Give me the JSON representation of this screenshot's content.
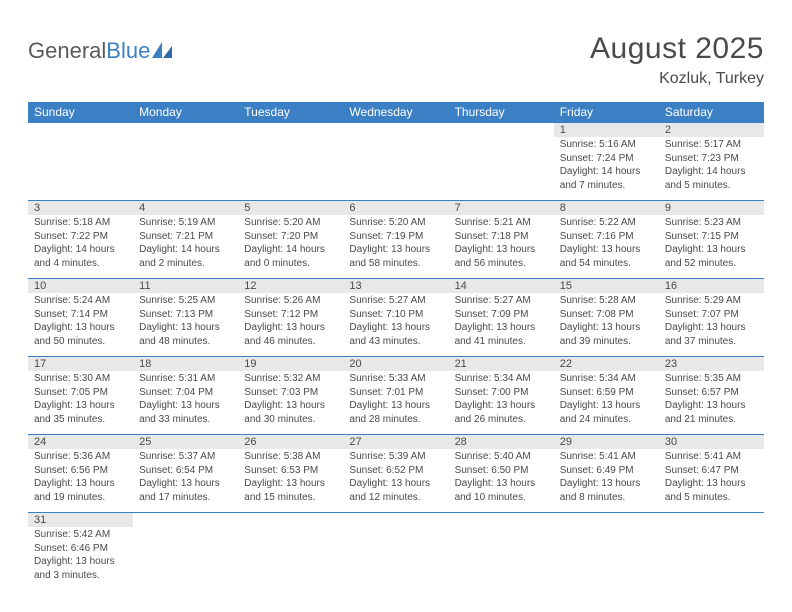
{
  "logo": {
    "text1": "General",
    "text2": "Blue"
  },
  "title": "August 2025",
  "location": "Kozluk, Turkey",
  "colors": {
    "header_bg": "#3b7fc4",
    "header_text": "#ffffff",
    "daynum_bg": "#e8e8e8",
    "text": "#4a4a4a",
    "row_border": "#3b7fc4"
  },
  "typography": {
    "title_fontsize": 30,
    "location_fontsize": 16,
    "dayheader_fontsize": 12,
    "daynum_fontsize": 11,
    "body_fontsize": 10,
    "font_family": "Arial"
  },
  "day_headers": [
    "Sunday",
    "Monday",
    "Tuesday",
    "Wednesday",
    "Thursday",
    "Friday",
    "Saturday"
  ],
  "weeks": [
    [
      null,
      null,
      null,
      null,
      null,
      {
        "n": "1",
        "sunrise": "Sunrise: 5:16 AM",
        "sunset": "Sunset: 7:24 PM",
        "daylight": "Daylight: 14 hours and 7 minutes."
      },
      {
        "n": "2",
        "sunrise": "Sunrise: 5:17 AM",
        "sunset": "Sunset: 7:23 PM",
        "daylight": "Daylight: 14 hours and 5 minutes."
      }
    ],
    [
      {
        "n": "3",
        "sunrise": "Sunrise: 5:18 AM",
        "sunset": "Sunset: 7:22 PM",
        "daylight": "Daylight: 14 hours and 4 minutes."
      },
      {
        "n": "4",
        "sunrise": "Sunrise: 5:19 AM",
        "sunset": "Sunset: 7:21 PM",
        "daylight": "Daylight: 14 hours and 2 minutes."
      },
      {
        "n": "5",
        "sunrise": "Sunrise: 5:20 AM",
        "sunset": "Sunset: 7:20 PM",
        "daylight": "Daylight: 14 hours and 0 minutes."
      },
      {
        "n": "6",
        "sunrise": "Sunrise: 5:20 AM",
        "sunset": "Sunset: 7:19 PM",
        "daylight": "Daylight: 13 hours and 58 minutes."
      },
      {
        "n": "7",
        "sunrise": "Sunrise: 5:21 AM",
        "sunset": "Sunset: 7:18 PM",
        "daylight": "Daylight: 13 hours and 56 minutes."
      },
      {
        "n": "8",
        "sunrise": "Sunrise: 5:22 AM",
        "sunset": "Sunset: 7:16 PM",
        "daylight": "Daylight: 13 hours and 54 minutes."
      },
      {
        "n": "9",
        "sunrise": "Sunrise: 5:23 AM",
        "sunset": "Sunset: 7:15 PM",
        "daylight": "Daylight: 13 hours and 52 minutes."
      }
    ],
    [
      {
        "n": "10",
        "sunrise": "Sunrise: 5:24 AM",
        "sunset": "Sunset: 7:14 PM",
        "daylight": "Daylight: 13 hours and 50 minutes."
      },
      {
        "n": "11",
        "sunrise": "Sunrise: 5:25 AM",
        "sunset": "Sunset: 7:13 PM",
        "daylight": "Daylight: 13 hours and 48 minutes."
      },
      {
        "n": "12",
        "sunrise": "Sunrise: 5:26 AM",
        "sunset": "Sunset: 7:12 PM",
        "daylight": "Daylight: 13 hours and 46 minutes."
      },
      {
        "n": "13",
        "sunrise": "Sunrise: 5:27 AM",
        "sunset": "Sunset: 7:10 PM",
        "daylight": "Daylight: 13 hours and 43 minutes."
      },
      {
        "n": "14",
        "sunrise": "Sunrise: 5:27 AM",
        "sunset": "Sunset: 7:09 PM",
        "daylight": "Daylight: 13 hours and 41 minutes."
      },
      {
        "n": "15",
        "sunrise": "Sunrise: 5:28 AM",
        "sunset": "Sunset: 7:08 PM",
        "daylight": "Daylight: 13 hours and 39 minutes."
      },
      {
        "n": "16",
        "sunrise": "Sunrise: 5:29 AM",
        "sunset": "Sunset: 7:07 PM",
        "daylight": "Daylight: 13 hours and 37 minutes."
      }
    ],
    [
      {
        "n": "17",
        "sunrise": "Sunrise: 5:30 AM",
        "sunset": "Sunset: 7:05 PM",
        "daylight": "Daylight: 13 hours and 35 minutes."
      },
      {
        "n": "18",
        "sunrise": "Sunrise: 5:31 AM",
        "sunset": "Sunset: 7:04 PM",
        "daylight": "Daylight: 13 hours and 33 minutes."
      },
      {
        "n": "19",
        "sunrise": "Sunrise: 5:32 AM",
        "sunset": "Sunset: 7:03 PM",
        "daylight": "Daylight: 13 hours and 30 minutes."
      },
      {
        "n": "20",
        "sunrise": "Sunrise: 5:33 AM",
        "sunset": "Sunset: 7:01 PM",
        "daylight": "Daylight: 13 hours and 28 minutes."
      },
      {
        "n": "21",
        "sunrise": "Sunrise: 5:34 AM",
        "sunset": "Sunset: 7:00 PM",
        "daylight": "Daylight: 13 hours and 26 minutes."
      },
      {
        "n": "22",
        "sunrise": "Sunrise: 5:34 AM",
        "sunset": "Sunset: 6:59 PM",
        "daylight": "Daylight: 13 hours and 24 minutes."
      },
      {
        "n": "23",
        "sunrise": "Sunrise: 5:35 AM",
        "sunset": "Sunset: 6:57 PM",
        "daylight": "Daylight: 13 hours and 21 minutes."
      }
    ],
    [
      {
        "n": "24",
        "sunrise": "Sunrise: 5:36 AM",
        "sunset": "Sunset: 6:56 PM",
        "daylight": "Daylight: 13 hours and 19 minutes."
      },
      {
        "n": "25",
        "sunrise": "Sunrise: 5:37 AM",
        "sunset": "Sunset: 6:54 PM",
        "daylight": "Daylight: 13 hours and 17 minutes."
      },
      {
        "n": "26",
        "sunrise": "Sunrise: 5:38 AM",
        "sunset": "Sunset: 6:53 PM",
        "daylight": "Daylight: 13 hours and 15 minutes."
      },
      {
        "n": "27",
        "sunrise": "Sunrise: 5:39 AM",
        "sunset": "Sunset: 6:52 PM",
        "daylight": "Daylight: 13 hours and 12 minutes."
      },
      {
        "n": "28",
        "sunrise": "Sunrise: 5:40 AM",
        "sunset": "Sunset: 6:50 PM",
        "daylight": "Daylight: 13 hours and 10 minutes."
      },
      {
        "n": "29",
        "sunrise": "Sunrise: 5:41 AM",
        "sunset": "Sunset: 6:49 PM",
        "daylight": "Daylight: 13 hours and 8 minutes."
      },
      {
        "n": "30",
        "sunrise": "Sunrise: 5:41 AM",
        "sunset": "Sunset: 6:47 PM",
        "daylight": "Daylight: 13 hours and 5 minutes."
      }
    ],
    [
      {
        "n": "31",
        "sunrise": "Sunrise: 5:42 AM",
        "sunset": "Sunset: 6:46 PM",
        "daylight": "Daylight: 13 hours and 3 minutes."
      },
      null,
      null,
      null,
      null,
      null,
      null
    ]
  ]
}
